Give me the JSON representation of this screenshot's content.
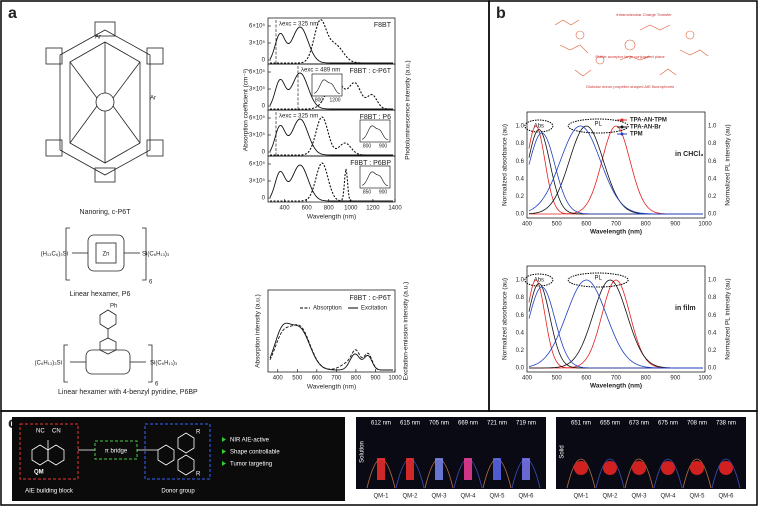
{
  "panel_a": {
    "label": "a",
    "molecules": [
      {
        "name": "Nanoring, c-P6T",
        "substituent": "Ar"
      },
      {
        "name": "Linear hexamer, P6",
        "left_group": "(H₁₃C₆)₃Si",
        "right_group": "Si(C₆H₁₃)₃",
        "repeat": "6",
        "metal": "Zn"
      },
      {
        "name": "Linear hexamer with 4-benzyl pyridine, P6BP",
        "left_group": "(C₆H₁₃)₃Si",
        "right_group": "Si(C₆H₁₃)₃",
        "repeat": "6",
        "top_group": "Ph"
      }
    ],
    "spectra": {
      "y_label": "Absorption coefficient (cm⁻¹)",
      "y2_label": "Photoluminescence intensity (a.u.)",
      "x_label": "Wavelength (nm)",
      "x_ticks": [
        400,
        600,
        800,
        1000,
        1200,
        1400
      ],
      "y_ticks": [
        "6×10⁵",
        "3×10⁵",
        "0"
      ],
      "panels": [
        {
          "title": "F8BT",
          "annotation": "λexc = 325 nm"
        },
        {
          "title": "F8BT : c-P6T",
          "annotation": "λexc = 489 nm",
          "inset_ticks": [
            800,
            1200
          ]
        },
        {
          "title": "F8BT : P6",
          "annotation": "λexc = 325 nm",
          "inset_ticks": [
            800,
            900
          ]
        },
        {
          "title": "F8BT : P6BP",
          "inset_ticks": [
            850,
            900
          ]
        }
      ]
    },
    "excitation": {
      "title": "F8BT : c-P6T",
      "legend": [
        "Absorption",
        "Excitation"
      ],
      "y_label": "Absorption intensity (a.u.)",
      "y2_label": "Excitation-emission intensity (a.u.)",
      "x_label": "Wavelength (nm)",
      "x_ticks": [
        400,
        500,
        600,
        700,
        800,
        900,
        1000
      ]
    }
  },
  "panel_b": {
    "label": "b",
    "scheme": [
      "Intramolecular Charge Transfer",
      "Stable acceptor large conjugated plane",
      "Globular donor propeller-shaped AIE fluorophores"
    ],
    "legend": [
      "TPA-AN-TPM",
      "TPA-AN-Br",
      "TPM"
    ],
    "plots": [
      {
        "condition": "in CHCl₃"
      },
      {
        "condition": "in film"
      }
    ],
    "abs": "Abs",
    "pl": "PL",
    "y_label": "Normalized absorbance (au)",
    "y2_label": "Normalized PL intensity (au)",
    "x_label": "Wavelength (nm)",
    "x_ticks": [
      400,
      500,
      600,
      700,
      800,
      900,
      1000
    ],
    "y_ticks": [
      "0.0",
      "0.2",
      "0.4",
      "0.6",
      "0.8",
      "1.0"
    ]
  },
  "panel_c": {
    "label": "c",
    "scheme": {
      "nc": "NC",
      "cn": "CN",
      "core": "QM",
      "bridge": "π bridge",
      "block": "AIE building block",
      "donor": "Donor group",
      "r": "R"
    },
    "features": [
      "NIR AIE-active",
      "Shape controllable",
      "Tumor targeting"
    ],
    "compounds": [
      "QM-1",
      "QM-2",
      "QM-3",
      "QM-4",
      "QM-5",
      "QM-6"
    ],
    "solution": {
      "label": "Solution",
      "emission": [
        "612 nm",
        "615 nm",
        "705 nm",
        "669 nm",
        "721 nm",
        "719 nm"
      ]
    },
    "solid": {
      "label": "Solid",
      "emission": [
        "651 nm",
        "655 nm",
        "673 nm",
        "675 nm",
        "708 nm",
        "738 nm"
      ]
    }
  }
}
